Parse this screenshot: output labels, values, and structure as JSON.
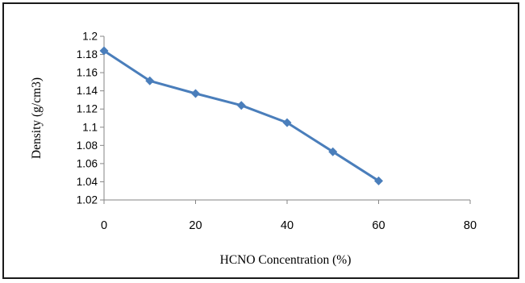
{
  "chart_data": {
    "type": "line",
    "title": "",
    "xlabel": "HCNO Concentration (%)",
    "ylabel": "Density (g/cm3)",
    "xlim": [
      0,
      80
    ],
    "ylim": [
      1.02,
      1.2
    ],
    "x_ticks": [
      "0",
      "20",
      "40",
      "60",
      "80"
    ],
    "y_ticks": [
      "1.02",
      "1.04",
      "1.06",
      "1.08",
      "1.1",
      "1.12",
      "1.14",
      "1.16",
      "1.18",
      "1.2"
    ],
    "grid": false,
    "legend": "none",
    "series": [
      {
        "x": [
          0,
          10,
          20,
          30,
          40,
          50,
          60
        ],
        "y": [
          1.184,
          1.151,
          1.137,
          1.124,
          1.105,
          1.073,
          1.041
        ],
        "color": "#4a7ebb",
        "marker": "diamond"
      }
    ]
  }
}
